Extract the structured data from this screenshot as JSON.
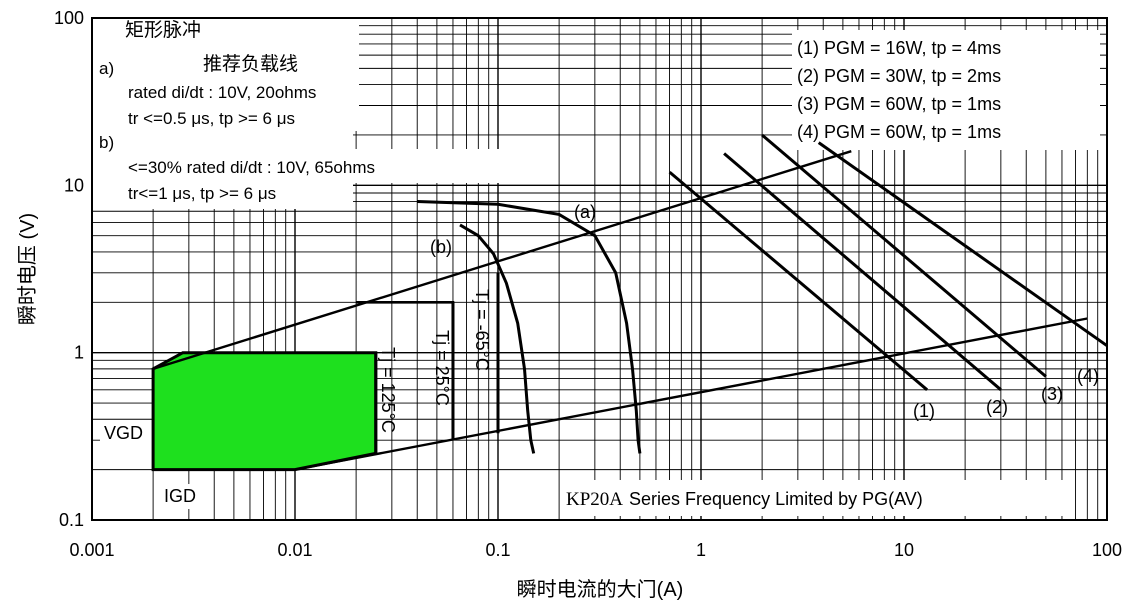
{
  "chart_data": {
    "type": "line",
    "title": "",
    "xscale": "log",
    "yscale": "log",
    "xlim": [
      0.001,
      100
    ],
    "ylim": [
      0.1,
      100
    ],
    "grid": true,
    "xlabel": "瞬时电流的大门(A)",
    "ylabel": "瞬时电压 (V)",
    "xticks": [
      {
        "value": 0.001,
        "label": "0.001"
      },
      {
        "value": 0.01,
        "label": "0.01"
      },
      {
        "value": 0.1,
        "label": "0.1"
      },
      {
        "value": 1,
        "label": "1"
      },
      {
        "value": 10,
        "label": "10"
      },
      {
        "value": 100,
        "label": "100"
      }
    ],
    "yticks": [
      {
        "value": 0.1,
        "label": "0.1"
      },
      {
        "value": 1,
        "label": "1"
      },
      {
        "value": 10,
        "label": "10"
      },
      {
        "value": 100,
        "label": "100"
      }
    ],
    "notes": {
      "rect_pulse": "矩形脉冲",
      "a_marker": "a)",
      "recommended_load_line": "推荐负载线",
      "a_line1": "rated di/dt : 10V, 20ohms",
      "a_line2": "tr <=0.5 μs, tp >= 6 μs",
      "b_marker": "b)",
      "b_line1": "<=30% rated di/dt : 10V, 65ohms",
      "b_line2": "tr<=1 μs, tp >= 6 μs"
    },
    "legend": [
      "(1) PGM = 16W,  tp = 4ms",
      "(2) PGM = 30W,  tp = 2ms",
      "(3) PGM = 60W,  tp = 1ms",
      "(4) PGM = 60W,  tp = 1ms"
    ],
    "series_caption_model": "KP20A",
    "series_caption_rest": "Series Frequency Limited by PG(AV)",
    "region": {
      "name": "gate trigger region",
      "vgd_label": "VGD",
      "igd_label": "IGD",
      "color": "#1ee01e",
      "points": [
        [
          0.002,
          0.2
        ],
        [
          0.002,
          0.8
        ],
        [
          0.0028,
          1.0
        ],
        [
          0.025,
          1.0
        ],
        [
          0.025,
          0.25
        ],
        [
          0.01,
          0.2
        ]
      ]
    },
    "boundary_lines": [
      {
        "name": "upper-load-line",
        "points": [
          [
            0.002,
            0.8
          ],
          [
            5.5,
            16
          ]
        ]
      },
      {
        "name": "lower-load-line",
        "points": [
          [
            0.01,
            0.2
          ],
          [
            80,
            1.6
          ]
        ]
      }
    ],
    "steps": [
      {
        "name": "tj-25-step",
        "points": [
          [
            0.02,
            2.0
          ],
          [
            0.06,
            2.0
          ],
          [
            0.06,
            0.3
          ]
        ]
      }
    ],
    "temperature_lines": [
      {
        "label": "Tj = 125°C",
        "x": 0.025,
        "y": [
          0.25,
          1.0
        ]
      },
      {
        "label": "Tj = 25°C",
        "x": 0.06,
        "y": [
          0.3,
          2.0
        ]
      },
      {
        "label": "Tj = -65°C",
        "x": 0.1,
        "y": [
          0.33,
          3.0
        ]
      }
    ],
    "load_curves": [
      {
        "label": "(a)",
        "points": [
          [
            0.04,
            8.0
          ],
          [
            0.1,
            7.7
          ],
          [
            0.2,
            6.7
          ],
          [
            0.3,
            5.0
          ],
          [
            0.38,
            3.0
          ],
          [
            0.43,
            1.5
          ],
          [
            0.46,
            0.8
          ],
          [
            0.48,
            0.45
          ],
          [
            0.49,
            0.3
          ],
          [
            0.5,
            0.25
          ]
        ]
      },
      {
        "label": "(b)",
        "points": [
          [
            0.065,
            5.8
          ],
          [
            0.08,
            5.0
          ],
          [
            0.095,
            3.9
          ],
          [
            0.11,
            2.6
          ],
          [
            0.125,
            1.5
          ],
          [
            0.135,
            0.8
          ],
          [
            0.14,
            0.45
          ],
          [
            0.145,
            0.3
          ],
          [
            0.15,
            0.25
          ]
        ]
      }
    ],
    "pgm_lines": [
      {
        "label": "(1)",
        "points": [
          [
            0.7,
            12
          ],
          [
            13,
            0.6
          ]
        ]
      },
      {
        "label": "(2)",
        "points": [
          [
            1.3,
            15.5
          ],
          [
            30,
            0.6
          ]
        ]
      },
      {
        "label": "(3)",
        "points": [
          [
            2.0,
            20
          ],
          [
            50,
            0.72
          ]
        ]
      },
      {
        "label": "(4)",
        "points": [
          [
            3.8,
            18
          ],
          [
            100,
            1.1
          ]
        ]
      }
    ]
  }
}
